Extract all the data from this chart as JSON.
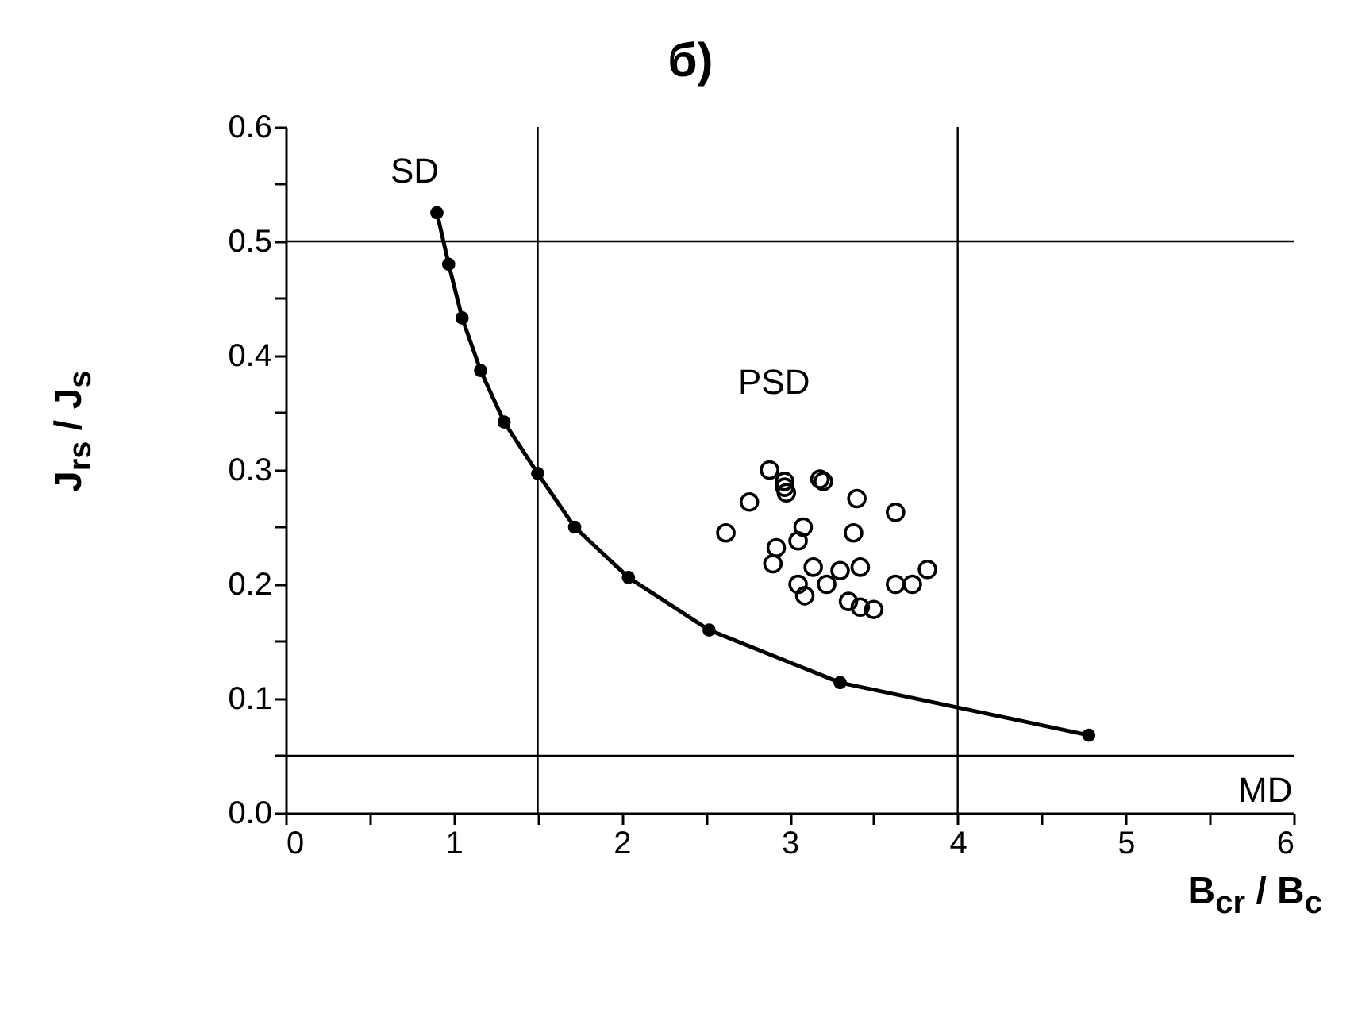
{
  "chart_data": {
    "type": "line",
    "title": "б)",
    "xlabel": "B$_{cr}$ / B$_{c}$",
    "ylabel": "J$_{rs}$ / J$_{s}$",
    "xlim": [
      0,
      6
    ],
    "ylim": [
      0,
      0.6
    ],
    "xticks": [
      0,
      {
        "value": 0.5,
        "label": null
      },
      1,
      {
        "value": 1.5,
        "label": null
      },
      2,
      {
        "value": 2.5,
        "label": null
      },
      3,
      {
        "value": 3.5,
        "label": null
      },
      4,
      {
        "value": 4.5,
        "label": null
      },
      5,
      {
        "value": 5.5,
        "label": null
      },
      6
    ],
    "yticks": [
      {
        "value": 0,
        "label": "0.0"
      },
      {
        "value": 0.05,
        "label": null
      },
      0.1,
      {
        "value": 0.15,
        "label": null
      },
      0.2,
      {
        "value": 0.25,
        "label": null
      },
      0.3,
      {
        "value": 0.35,
        "label": null
      },
      0.4,
      {
        "value": 0.45,
        "label": null
      },
      0.5,
      {
        "value": 0.55,
        "label": null
      },
      0.6
    ],
    "grid": false,
    "series": [
      {
        "color": "#000000",
        "marker": "circle",
        "line_style": "solid",
        "x": [
          0.9,
          0.97,
          1.05,
          1.16,
          1.3,
          1.5,
          1.72,
          2.04,
          2.52,
          3.3,
          4.78
        ],
        "values": [
          0.525,
          0.48,
          0.433,
          0.387,
          0.342,
          0.297,
          0.25,
          0.206,
          0.16,
          0.114,
          0.068
        ]
      },
      {
        "type": "scatter",
        "color": "#000000",
        "marker": "circle",
        "x": [
          2.62,
          2.76,
          2.88,
          2.92,
          2.9,
          2.97,
          2.98,
          2.97,
          3.08,
          3.05,
          3.05,
          3.09,
          3.14,
          3.2,
          3.18,
          3.22,
          3.3,
          3.35,
          3.4,
          3.38,
          3.42,
          3.42,
          3.5,
          3.63,
          3.63,
          3.73,
          3.82
        ],
        "values": [
          0.245,
          0.272,
          0.3,
          0.232,
          0.218,
          0.29,
          0.28,
          0.285,
          0.25,
          0.238,
          0.2,
          0.19,
          0.215,
          0.29,
          0.292,
          0.2,
          0.212,
          0.185,
          0.275,
          0.245,
          0.215,
          0.18,
          0.178,
          0.263,
          0.2,
          0.2,
          0.213
        ]
      }
    ],
    "ref_lines": [
      {
        "axis": "y",
        "value": 0.5
      },
      {
        "axis": "y",
        "value": 0.05
      },
      {
        "axis": "x",
        "value": 1.5
      },
      {
        "axis": "x",
        "value": 4
      }
    ],
    "annotations": [
      "SD",
      "PSD",
      "MD"
    ]
  }
}
